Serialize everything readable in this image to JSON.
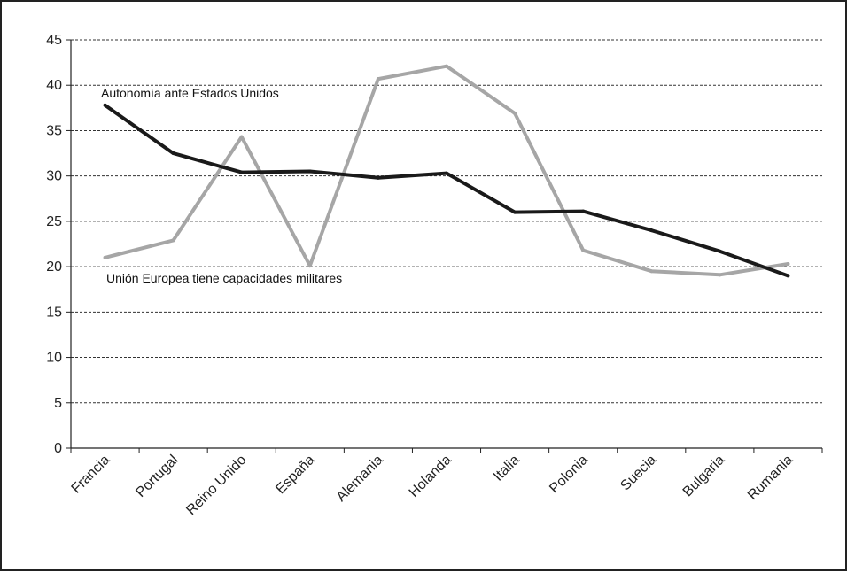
{
  "chart_data": {
    "type": "line",
    "title": "",
    "xlabel": "",
    "ylabel": "",
    "categories": [
      "Francia",
      "Portugal",
      "Reino Unido",
      "España",
      "Alemania",
      "Holanda",
      "Italia",
      "Polonia",
      "Suecia",
      "Bulgaria",
      "Rumania"
    ],
    "ylim": [
      0,
      45
    ],
    "yticks": [
      "0",
      "5",
      "10",
      "15",
      "20",
      "25",
      "30",
      "35",
      "40",
      "45"
    ],
    "grid": "horizontal-dashed",
    "legend": "none",
    "series": [
      {
        "name": "Autonomía ante Estados Unidos",
        "color": "#1a1a1a",
        "values": [
          37.8,
          32.5,
          30.4,
          30.5,
          29.8,
          30.3,
          26.0,
          26.1,
          24.0,
          21.7,
          19.0
        ]
      },
      {
        "name": "Unión Europea tiene capacidades militares",
        "color": "#a6a6a6",
        "values": [
          21.0,
          22.9,
          34.3,
          20.1,
          40.7,
          42.1,
          36.9,
          21.8,
          19.5,
          19.1,
          20.3
        ]
      }
    ]
  }
}
